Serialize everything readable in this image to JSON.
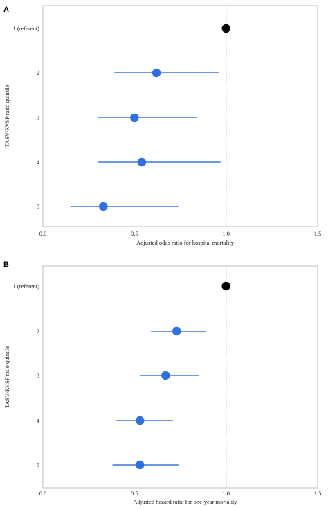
{
  "colors": {
    "estimate": "#2f6fe4",
    "ci_line": "#3a78d8",
    "referent": "#000000",
    "frame": "#bdbdbd",
    "reference_line": "#555555"
  },
  "chart_data": [
    {
      "type": "forest",
      "panel_label": "A",
      "xlabel": "Adjusted odds ratio for hospital mortality",
      "ylabel": "TASV/RVSP ratio quintile",
      "xlim": [
        0,
        1.5
      ],
      "xticks": [
        "0.0",
        "0.5",
        "1.0",
        "1.5"
      ],
      "reference_value": 1.0,
      "grid": false,
      "categories": [
        "1 (referent)",
        "2",
        "3",
        "4",
        "5"
      ],
      "estimates": [
        1.0,
        0.62,
        0.5,
        0.54,
        0.33
      ],
      "ci_lower": [
        null,
        0.39,
        0.3,
        0.3,
        0.15
      ],
      "ci_upper": [
        null,
        0.96,
        0.84,
        0.97,
        0.74
      ]
    },
    {
      "type": "forest",
      "panel_label": "B",
      "xlabel": "Adjusted hazard ratio for one-year mortality",
      "ylabel": "TASV/RVSP ratio quintile",
      "xlim": [
        0,
        1.5
      ],
      "xticks": [
        "0.0",
        "0.5",
        "1.0",
        "1.5"
      ],
      "reference_value": 1.0,
      "grid": false,
      "categories": [
        "1 (referent)",
        "2",
        "3",
        "4",
        "5"
      ],
      "estimates": [
        1.0,
        0.73,
        0.67,
        0.53,
        0.53
      ],
      "ci_lower": [
        null,
        0.59,
        0.53,
        0.4,
        0.38
      ],
      "ci_upper": [
        null,
        0.89,
        0.85,
        0.71,
        0.74
      ]
    }
  ]
}
